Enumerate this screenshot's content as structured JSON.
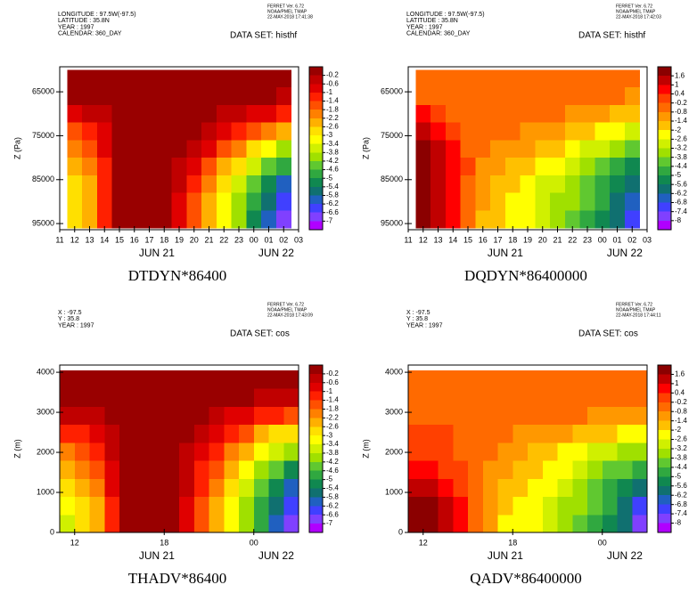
{
  "chart_data": [
    {
      "type": "heatmap",
      "title": "DTDYN*86400",
      "header": [
        "LONGITUDE : 97.5W(-97.5)",
        "LATITUDE : 35.8N",
        "YEAR : 1997",
        "CALENDAR: 360_DAY"
      ],
      "dataset": "DATA SET: histhf",
      "stamp": [
        "FERRET Ver. 6.72",
        "NOAA/PMEL TMAP",
        "22-MAY-2018 17:41:38"
      ],
      "ylabel": "Z (Pa)",
      "xlim": [
        11,
        27
      ],
      "xticks": [
        11,
        12,
        13,
        14,
        15,
        16,
        17,
        18,
        19,
        20,
        21,
        22,
        23,
        {
          "value": 24,
          "label": "00"
        },
        {
          "value": 25,
          "label": "01"
        },
        {
          "value": 26,
          "label": "02"
        },
        {
          "value": 27,
          "label": "03"
        }
      ],
      "date_ticks": [
        {
          "value": 17.5,
          "label": "JUN 21"
        },
        {
          "value": 25.5,
          "label": "JUN 22"
        }
      ],
      "ylim": [
        96400,
        59300
      ],
      "yticks": [
        65000,
        75000,
        85000,
        95000
      ],
      "x": [
        12,
        13,
        14,
        15,
        16,
        17,
        18,
        19,
        20,
        21,
        22,
        23,
        24,
        25,
        26
      ],
      "y": [
        62000,
        66000,
        70000,
        74000,
        78000,
        82000,
        86000,
        90000,
        94000
      ],
      "values": [
        [
          0,
          0,
          0,
          0,
          0,
          0,
          0,
          0,
          0,
          0,
          0,
          0,
          0,
          0,
          0
        ],
        [
          0,
          0,
          0,
          0,
          0,
          0,
          0,
          0,
          0,
          0,
          0,
          0,
          0,
          0,
          -0.3
        ],
        [
          -0.8,
          -0.6,
          -0.3,
          0,
          0,
          0,
          0,
          0,
          0,
          0,
          -0.3,
          -0.5,
          -0.8,
          -1.0,
          -1.3
        ],
        [
          -1.5,
          -1.3,
          -0.7,
          0,
          0,
          0,
          0,
          0,
          -0.2,
          -0.5,
          -0.9,
          -1.3,
          -1.8,
          -2.2,
          -2.6
        ],
        [
          -2.0,
          -1.8,
          -1.0,
          0,
          0,
          0,
          0,
          -0.2,
          -0.6,
          -1.0,
          -1.6,
          -2.2,
          -2.8,
          -3.4,
          -3.9
        ],
        [
          -2.4,
          -2.1,
          -1.2,
          0,
          0,
          0,
          0,
          -0.4,
          -1.0,
          -1.6,
          -2.3,
          -3.0,
          -3.7,
          -4.4,
          -5.0
        ],
        [
          -2.7,
          -2.3,
          -1.3,
          0,
          0,
          0,
          0,
          -0.6,
          -1.3,
          -2.0,
          -2.8,
          -3.6,
          -4.4,
          -5.2,
          -5.9
        ],
        [
          -2.9,
          -2.4,
          -1.3,
          0,
          0,
          0,
          0,
          -0.7,
          -1.5,
          -2.3,
          -3.1,
          -4.0,
          -4.9,
          -5.8,
          -6.5
        ],
        [
          -3.0,
          -2.4,
          -1.3,
          0,
          0,
          0,
          0,
          -0.8,
          -1.6,
          -2.5,
          -3.3,
          -4.2,
          -5.1,
          -6.0,
          -6.8
        ]
      ],
      "levels": [
        -0.2,
        -0.6,
        -1,
        -1.4,
        -1.8,
        -2.2,
        -2.6,
        -3,
        -3.4,
        -3.8,
        -4.2,
        -4.6,
        -5,
        -5.4,
        -5.8,
        -6.2,
        -6.6,
        -7
      ],
      "colors": [
        "#990000",
        "#c00000",
        "#e00000",
        "#ff2000",
        "#ff5000",
        "#ff8000",
        "#ffb000",
        "#ffe000",
        "#ffff00",
        "#d0f000",
        "#a0e000",
        "#60c830",
        "#30a840",
        "#108850",
        "#107070",
        "#2060c0",
        "#4040ff",
        "#8040ff",
        "#b000ff"
      ]
    },
    {
      "type": "heatmap",
      "title": "DQDYN*86400000",
      "header": [
        "LONGITUDE : 97.5W(-97.5)",
        "LATITUDE : 35.8N",
        "YEAR : 1997",
        "CALENDAR: 360_DAY"
      ],
      "dataset": "DATA SET: histhf",
      "stamp": [
        "FERRET Ver. 6.72",
        "NOAA/PMEL TMAP",
        "22-MAY-2018 17:42:03"
      ],
      "ylabel": "Z (Pa)",
      "xlim": [
        11,
        27
      ],
      "xticks": [
        11,
        12,
        13,
        14,
        15,
        16,
        17,
        18,
        19,
        20,
        21,
        22,
        23,
        {
          "value": 24,
          "label": "00"
        },
        {
          "value": 25,
          "label": "01"
        },
        {
          "value": 26,
          "label": "02"
        },
        {
          "value": 27,
          "label": "03"
        }
      ],
      "date_ticks": [
        {
          "value": 17.5,
          "label": "JUN 21"
        },
        {
          "value": 25.5,
          "label": "JUN 22"
        }
      ],
      "ylim": [
        96400,
        59300
      ],
      "yticks": [
        65000,
        75000,
        85000,
        95000
      ],
      "x": [
        12,
        13,
        14,
        15,
        16,
        17,
        18,
        19,
        20,
        21,
        22,
        23,
        24,
        25,
        26
      ],
      "y": [
        62000,
        66000,
        70000,
        74000,
        78000,
        82000,
        86000,
        90000,
        94000
      ],
      "values": [
        [
          -0.5,
          -0.5,
          -0.5,
          -0.5,
          -0.5,
          -0.5,
          -0.5,
          -0.5,
          -0.5,
          -0.5,
          -0.5,
          -0.5,
          -0.5,
          -0.5,
          -0.5
        ],
        [
          -0.5,
          -0.5,
          -0.5,
          -0.5,
          -0.5,
          -0.5,
          -0.5,
          -0.5,
          -0.5,
          -0.5,
          -0.5,
          -0.5,
          -0.5,
          -0.5,
          -0.9
        ],
        [
          0.6,
          0.2,
          -0.3,
          -0.5,
          -0.5,
          -0.5,
          -0.5,
          -0.6,
          -0.7,
          -0.8,
          -1.0,
          -1.2,
          -1.4,
          -1.6,
          -1.8
        ],
        [
          1.2,
          0.7,
          0.1,
          -0.4,
          -0.6,
          -0.7,
          -0.8,
          -0.9,
          -1.1,
          -1.3,
          -1.6,
          -1.9,
          -2.2,
          -2.5,
          -2.8
        ],
        [
          1.8,
          1.2,
          0.5,
          -0.3,
          -0.8,
          -1.0,
          -1.2,
          -1.4,
          -1.7,
          -2.0,
          -2.3,
          -2.7,
          -3.1,
          -3.5,
          -4.0
        ],
        [
          2.0,
          1.4,
          0.7,
          -0.2,
          -1.0,
          -1.4,
          -1.7,
          -2.0,
          -2.3,
          -2.6,
          -3.0,
          -3.5,
          -4.0,
          -4.6,
          -5.2
        ],
        [
          2.1,
          1.5,
          0.8,
          -0.3,
          -1.2,
          -1.7,
          -2.0,
          -2.3,
          -2.7,
          -3.0,
          -3.5,
          -4.0,
          -4.6,
          -5.3,
          -6.1
        ],
        [
          2.1,
          1.5,
          0.8,
          -0.4,
          -1.4,
          -1.9,
          -2.2,
          -2.5,
          -2.9,
          -3.3,
          -3.8,
          -4.3,
          -5.0,
          -5.8,
          -6.8
        ],
        [
          2.0,
          1.4,
          0.7,
          -0.5,
          -1.5,
          -2.0,
          -2.3,
          -2.6,
          -3.0,
          -3.4,
          -3.9,
          -4.5,
          -5.2,
          -6.1,
          -7.2
        ]
      ],
      "levels": [
        1.6,
        1,
        0.4,
        -0.2,
        -0.8,
        -1.4,
        -2,
        -2.6,
        -3.2,
        -3.8,
        -4.4,
        -5,
        -5.6,
        -6.2,
        -6.8,
        -7.4,
        -8
      ],
      "colors": [
        "#8b0000",
        "#c00000",
        "#ff0000",
        "#ff4000",
        "#ff6a00",
        "#ff9800",
        "#ffc000",
        "#ffff00",
        "#d0f000",
        "#a0e000",
        "#60c830",
        "#30a840",
        "#108850",
        "#107070",
        "#2060c0",
        "#4040ff",
        "#8040ff",
        "#b000ff"
      ]
    },
    {
      "type": "heatmap",
      "title": "THADV*86400",
      "header": [
        "X : -97.5",
        "Y : 35.8",
        "YEAR : 1997"
      ],
      "dataset": "DATA SET: cos",
      "stamp": [
        "FERRET Ver. 6.72",
        "NOAA/PMEL TMAP",
        "22-MAY-2018 17:43:09"
      ],
      "ylabel": "Z (m)",
      "xlim": [
        11,
        27
      ],
      "xticks": [
        12,
        18,
        {
          "value": 24,
          "label": "00"
        }
      ],
      "date_ticks": [
        {
          "value": 17.5,
          "label": "JUN 21"
        },
        {
          "value": 25.5,
          "label": "JUN 22"
        }
      ],
      "ylim": [
        0,
        4180
      ],
      "yticks": [
        0,
        1000,
        2000,
        3000,
        4000
      ],
      "x": [
        11.5,
        12.5,
        13.5,
        14.5,
        15.5,
        16.5,
        17.5,
        18.5,
        19.5,
        20.5,
        21.5,
        22.5,
        23.5,
        24.5,
        25.5,
        26.5
      ],
      "y": [
        225,
        675,
        1125,
        1575,
        2025,
        2475,
        2925,
        3375,
        3825
      ],
      "values": [
        [
          -3.6,
          -3.0,
          -2.4,
          -1.2,
          0,
          0,
          0,
          0,
          -0.8,
          -1.6,
          -2.4,
          -3.2,
          -4.0,
          -5.0,
          -6.0,
          -6.8
        ],
        [
          -3.4,
          -2.9,
          -2.3,
          -1.1,
          0,
          0,
          0,
          0,
          -0.7,
          -1.5,
          -2.3,
          -3.1,
          -3.9,
          -4.8,
          -5.7,
          -6.5
        ],
        [
          -3.0,
          -2.6,
          -2.0,
          -1.0,
          0,
          0,
          0,
          0,
          -0.6,
          -1.3,
          -2.1,
          -2.8,
          -3.6,
          -4.4,
          -5.2,
          -5.9
        ],
        [
          -2.6,
          -2.2,
          -1.7,
          -0.8,
          0,
          0,
          0,
          0,
          -0.5,
          -1.1,
          -1.8,
          -2.5,
          -3.2,
          -3.9,
          -4.5,
          -5.1
        ],
        [
          -2.0,
          -1.7,
          -1.3,
          -0.6,
          0,
          0,
          0,
          0,
          -0.3,
          -0.9,
          -1.4,
          -2.0,
          -2.6,
          -3.2,
          -3.7,
          -4.1
        ],
        [
          -1.3,
          -1.1,
          -0.8,
          -0.4,
          0,
          0,
          0,
          0,
          -0.1,
          -0.5,
          -0.9,
          -1.4,
          -1.8,
          -2.3,
          -2.7,
          -3.0
        ],
        [
          -0.5,
          -0.4,
          -0.3,
          0,
          0,
          0,
          0,
          0,
          0,
          -0.2,
          -0.4,
          -0.7,
          -0.9,
          -1.2,
          -1.4,
          -1.6
        ],
        [
          0,
          0,
          0,
          0,
          0,
          0,
          0,
          0,
          0,
          0,
          0,
          0,
          0,
          -0.3,
          -0.3,
          -0.4
        ],
        [
          0,
          0,
          0,
          0,
          0,
          0,
          0,
          0,
          0,
          0,
          0,
          0,
          0,
          0,
          0,
          0
        ]
      ],
      "levels": [
        -0.2,
        -0.6,
        -1,
        -1.4,
        -1.8,
        -2.2,
        -2.6,
        -3,
        -3.4,
        -3.8,
        -4.2,
        -4.6,
        -5,
        -5.4,
        -5.8,
        -6.2,
        -6.6,
        -7
      ],
      "colors": [
        "#990000",
        "#c00000",
        "#e00000",
        "#ff2000",
        "#ff5000",
        "#ff8000",
        "#ffb000",
        "#ffe000",
        "#ffff00",
        "#d0f000",
        "#a0e000",
        "#60c830",
        "#30a840",
        "#108850",
        "#107070",
        "#2060c0",
        "#4040ff",
        "#8040ff",
        "#b000ff"
      ]
    },
    {
      "type": "heatmap",
      "title": "QADV*86400000",
      "header": [
        "X : -97.5",
        "Y : 35.8",
        "YEAR : 1997"
      ],
      "dataset": "DATA SET: cos",
      "stamp": [
        "FERRET Ver. 6.72",
        "NOAA/PMEL TMAP",
        "22-MAY-2018 17:44:11"
      ],
      "ylabel": "Z (m)",
      "xlim": [
        11,
        27
      ],
      "xticks": [
        12,
        18,
        {
          "value": 24,
          "label": "00"
        }
      ],
      "date_ticks": [
        {
          "value": 17.5,
          "label": "JUN 21"
        },
        {
          "value": 25.5,
          "label": "JUN 22"
        }
      ],
      "ylim": [
        0,
        4180
      ],
      "yticks": [
        0,
        1000,
        2000,
        3000,
        4000
      ],
      "x": [
        11.5,
        12.5,
        13.5,
        14.5,
        15.5,
        16.5,
        17.5,
        18.5,
        19.5,
        20.5,
        21.5,
        22.5,
        23.5,
        24.5,
        25.5,
        26.5
      ],
      "y": [
        225,
        675,
        1125,
        1575,
        2025,
        2475,
        2925,
        3375,
        3825
      ],
      "values": [
        [
          2.0,
          1.8,
          1.2,
          0.5,
          -0.6,
          -1.2,
          -2.2,
          -2.4,
          -2.6,
          -3.0,
          -3.4,
          -3.9,
          -4.5,
          -5.2,
          -6.2,
          -7.8
        ],
        [
          1.9,
          1.7,
          1.1,
          0.4,
          -0.6,
          -1.1,
          -2.0,
          -2.3,
          -2.5,
          -2.9,
          -3.3,
          -3.8,
          -4.4,
          -5.0,
          -5.9,
          -7.0
        ],
        [
          1.3,
          1.1,
          0.7,
          0.2,
          -0.6,
          -1.0,
          -1.7,
          -2.0,
          -2.3,
          -2.6,
          -3.0,
          -3.5,
          -4.0,
          -4.6,
          -5.3,
          -6.0
        ],
        [
          0.8,
          0.6,
          0.3,
          -0.1,
          -0.6,
          -0.9,
          -1.4,
          -1.7,
          -1.9,
          -2.2,
          -2.6,
          -3.0,
          -3.4,
          -3.9,
          -4.4,
          -4.9
        ],
        [
          0.3,
          0.2,
          0,
          -0.3,
          -0.6,
          -0.8,
          -1.1,
          -1.3,
          -1.5,
          -1.8,
          -2.1,
          -2.4,
          -2.7,
          -3.1,
          -3.4,
          -3.7
        ],
        [
          -0.1,
          -0.1,
          -0.2,
          -0.4,
          -0.5,
          -0.6,
          -0.8,
          -0.9,
          -1.0,
          -1.2,
          -1.4,
          -1.6,
          -1.8,
          -2.0,
          -2.2,
          -2.4
        ],
        [
          -0.4,
          -0.4,
          -0.4,
          -0.4,
          -0.4,
          -0.4,
          -0.4,
          -0.4,
          -0.5,
          -0.6,
          -0.7,
          -0.8,
          -0.9,
          -1.0,
          -1.1,
          -1.2
        ],
        [
          -0.5,
          -0.5,
          -0.5,
          -0.5,
          -0.5,
          -0.5,
          -0.5,
          -0.5,
          -0.5,
          -0.5,
          -0.5,
          -0.5,
          -0.5,
          -0.6,
          -0.6,
          -0.6
        ],
        [
          -0.5,
          -0.5,
          -0.5,
          -0.5,
          -0.5,
          -0.5,
          -0.5,
          -0.5,
          -0.5,
          -0.5,
          -0.5,
          -0.5,
          -0.5,
          -0.5,
          -0.5,
          -0.5
        ]
      ],
      "levels": [
        1.6,
        1,
        0.4,
        -0.2,
        -0.8,
        -1.4,
        -2,
        -2.6,
        -3.2,
        -3.8,
        -4.4,
        -5,
        -5.6,
        -6.2,
        -6.8,
        -7.4,
        -8
      ],
      "colors": [
        "#8b0000",
        "#c00000",
        "#ff0000",
        "#ff4000",
        "#ff6a00",
        "#ff9800",
        "#ffc000",
        "#ffff00",
        "#d0f000",
        "#a0e000",
        "#60c830",
        "#30a840",
        "#108850",
        "#107070",
        "#2060c0",
        "#4040ff",
        "#8040ff",
        "#b000ff"
      ]
    }
  ]
}
